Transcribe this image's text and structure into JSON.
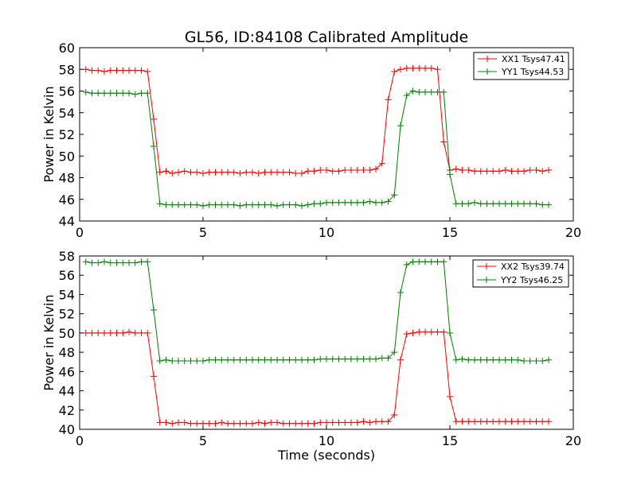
{
  "chart_data": [
    {
      "type": "line",
      "title": "GL56, ID:84108 Calibrated Amplitude",
      "xlabel": "",
      "ylabel": "Power in Kelvin",
      "xlim": [
        0,
        20
      ],
      "ylim": [
        44,
        60
      ],
      "xticks": [
        0,
        5,
        10,
        15,
        20
      ],
      "yticks": [
        44,
        46,
        48,
        50,
        52,
        54,
        56,
        58,
        60
      ],
      "legend_position": "top-right",
      "x": [
        0.25,
        0.5,
        0.75,
        1.0,
        1.25,
        1.5,
        1.75,
        2.0,
        2.25,
        2.5,
        2.75,
        3.0,
        3.25,
        3.5,
        3.75,
        4.0,
        4.25,
        4.5,
        4.75,
        5.0,
        5.25,
        5.5,
        5.75,
        6.0,
        6.25,
        6.5,
        6.75,
        7.0,
        7.25,
        7.5,
        7.75,
        8.0,
        8.25,
        8.5,
        8.75,
        9.0,
        9.25,
        9.5,
        9.75,
        10.0,
        10.25,
        10.5,
        10.75,
        11.0,
        11.25,
        11.5,
        11.75,
        12.0,
        12.25,
        12.5,
        12.75,
        13.0,
        13.25,
        13.5,
        13.75,
        14.0,
        14.25,
        14.5,
        14.75,
        15.0,
        15.25,
        15.5,
        15.75,
        16.0,
        16.25,
        16.5,
        16.75,
        17.0,
        17.25,
        17.5,
        17.75,
        18.0,
        18.25,
        18.5,
        18.75,
        19.0
      ],
      "series": [
        {
          "name": "XX1 Tsys47.41",
          "color": "#ff0000",
          "values": [
            58.0,
            57.9,
            57.9,
            57.8,
            57.9,
            57.9,
            57.9,
            57.9,
            57.9,
            57.9,
            57.8,
            53.4,
            48.5,
            48.6,
            48.4,
            48.5,
            48.6,
            48.5,
            48.5,
            48.4,
            48.5,
            48.5,
            48.5,
            48.5,
            48.5,
            48.4,
            48.5,
            48.5,
            48.4,
            48.5,
            48.5,
            48.5,
            48.5,
            48.5,
            48.4,
            48.4,
            48.6,
            48.6,
            48.7,
            48.7,
            48.6,
            48.6,
            48.7,
            48.7,
            48.7,
            48.7,
            48.7,
            48.8,
            49.3,
            55.2,
            57.8,
            58.0,
            58.1,
            58.1,
            58.1,
            58.1,
            58.1,
            58.0,
            51.3,
            48.7,
            48.8,
            48.7,
            48.7,
            48.6,
            48.6,
            48.6,
            48.6,
            48.6,
            48.7,
            48.6,
            48.6,
            48.6,
            48.7,
            48.7,
            48.6,
            48.7
          ]
        },
        {
          "name": "YY1 Tsys44.53",
          "color": "#008000",
          "values": [
            55.9,
            55.8,
            55.8,
            55.8,
            55.8,
            55.8,
            55.8,
            55.8,
            55.7,
            55.8,
            55.8,
            50.9,
            45.6,
            45.5,
            45.5,
            45.5,
            45.5,
            45.5,
            45.5,
            45.4,
            45.5,
            45.5,
            45.5,
            45.5,
            45.5,
            45.4,
            45.5,
            45.5,
            45.5,
            45.5,
            45.5,
            45.4,
            45.5,
            45.5,
            45.5,
            45.4,
            45.5,
            45.6,
            45.6,
            45.7,
            45.7,
            45.7,
            45.7,
            45.7,
            45.7,
            45.7,
            45.8,
            45.7,
            45.7,
            45.8,
            46.4,
            52.8,
            55.6,
            56.0,
            55.9,
            55.9,
            55.9,
            55.9,
            55.9,
            48.3,
            45.6,
            45.6,
            45.6,
            45.7,
            45.6,
            45.6,
            45.6,
            45.6,
            45.6,
            45.6,
            45.6,
            45.6,
            45.6,
            45.6,
            45.5,
            45.5
          ]
        }
      ]
    },
    {
      "type": "line",
      "title": "",
      "xlabel": "Time (seconds)",
      "ylabel": "Power in Kelvin",
      "xlim": [
        0,
        20
      ],
      "ylim": [
        40,
        58
      ],
      "xticks": [
        0,
        5,
        10,
        15,
        20
      ],
      "yticks": [
        40,
        42,
        44,
        46,
        48,
        50,
        52,
        54,
        56,
        58
      ],
      "legend_position": "top-right",
      "x": [
        0.25,
        0.5,
        0.75,
        1.0,
        1.25,
        1.5,
        1.75,
        2.0,
        2.25,
        2.5,
        2.75,
        3.0,
        3.25,
        3.5,
        3.75,
        4.0,
        4.25,
        4.5,
        4.75,
        5.0,
        5.25,
        5.5,
        5.75,
        6.0,
        6.25,
        6.5,
        6.75,
        7.0,
        7.25,
        7.5,
        7.75,
        8.0,
        8.25,
        8.5,
        8.75,
        9.0,
        9.25,
        9.5,
        9.75,
        10.0,
        10.25,
        10.5,
        10.75,
        11.0,
        11.25,
        11.5,
        11.75,
        12.0,
        12.25,
        12.5,
        12.75,
        13.0,
        13.25,
        13.5,
        13.75,
        14.0,
        14.25,
        14.5,
        14.75,
        15.0,
        15.25,
        15.5,
        15.75,
        16.0,
        16.25,
        16.5,
        16.75,
        17.0,
        17.25,
        17.5,
        17.75,
        18.0,
        18.25,
        18.5,
        18.75,
        19.0
      ],
      "series": [
        {
          "name": "XX2 Tsys39.74",
          "color": "#ff0000",
          "values": [
            50.0,
            50.0,
            50.0,
            50.0,
            50.0,
            50.0,
            50.0,
            50.1,
            50.0,
            50.0,
            50.0,
            45.5,
            40.7,
            40.7,
            40.6,
            40.7,
            40.7,
            40.6,
            40.6,
            40.6,
            40.6,
            40.6,
            40.7,
            40.6,
            40.6,
            40.6,
            40.6,
            40.6,
            40.7,
            40.6,
            40.7,
            40.7,
            40.6,
            40.6,
            40.6,
            40.6,
            40.6,
            40.6,
            40.7,
            40.7,
            40.7,
            40.7,
            40.7,
            40.7,
            40.7,
            40.8,
            40.7,
            40.8,
            40.8,
            40.8,
            41.5,
            47.2,
            49.9,
            50.0,
            50.1,
            50.1,
            50.1,
            50.1,
            50.1,
            43.4,
            40.8,
            40.8,
            40.8,
            40.8,
            40.8,
            40.8,
            40.8,
            40.8,
            40.8,
            40.8,
            40.8,
            40.8,
            40.8,
            40.8,
            40.8,
            40.8
          ]
        },
        {
          "name": "YY2 Tsys46.25",
          "color": "#008000",
          "values": [
            57.4,
            57.3,
            57.3,
            57.4,
            57.3,
            57.3,
            57.3,
            57.3,
            57.3,
            57.4,
            57.4,
            52.4,
            47.1,
            47.2,
            47.1,
            47.1,
            47.1,
            47.1,
            47.1,
            47.1,
            47.2,
            47.2,
            47.2,
            47.2,
            47.2,
            47.2,
            47.2,
            47.2,
            47.2,
            47.2,
            47.2,
            47.2,
            47.2,
            47.2,
            47.2,
            47.2,
            47.2,
            47.2,
            47.3,
            47.3,
            47.3,
            47.3,
            47.3,
            47.3,
            47.3,
            47.3,
            47.3,
            47.3,
            47.4,
            47.4,
            48.0,
            54.2,
            57.1,
            57.4,
            57.4,
            57.4,
            57.4,
            57.4,
            57.4,
            50.0,
            47.2,
            47.3,
            47.2,
            47.2,
            47.2,
            47.2,
            47.2,
            47.2,
            47.2,
            47.2,
            47.2,
            47.1,
            47.1,
            47.1,
            47.1,
            47.2
          ]
        }
      ]
    }
  ]
}
